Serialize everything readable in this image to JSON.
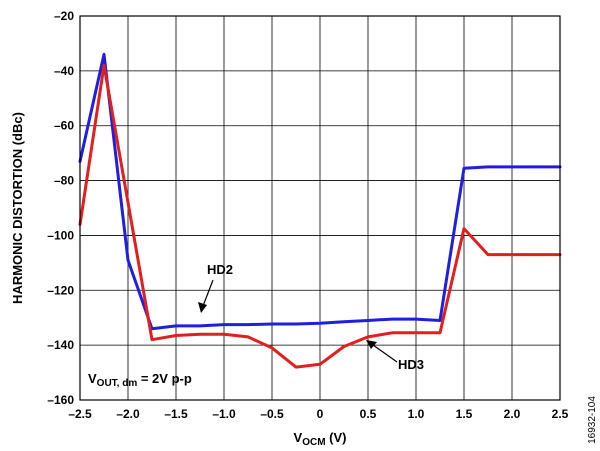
{
  "chart_data": {
    "type": "line",
    "xlabel_main": "V",
    "xlabel_sub": "OCM",
    "xlabel_unit": " (V)",
    "ylabel": "HARMONIC DISTORTION (dBc)",
    "xlim": [
      -2.5,
      2.5
    ],
    "ylim": [
      -160,
      -20
    ],
    "grid": true,
    "x_ticks": [
      -2.5,
      -2.0,
      -1.5,
      -1.0,
      -0.5,
      0,
      0.5,
      1.0,
      1.5,
      2.0,
      2.5
    ],
    "x_tick_labels": [
      "–2.5",
      "–2.0",
      "–1.5",
      "–1.0",
      "–0.5",
      "0",
      "0.5",
      "1.0",
      "1.5",
      "2.0",
      "2.5"
    ],
    "y_ticks": [
      -20,
      -40,
      -60,
      -80,
      -100,
      -120,
      -140,
      -160
    ],
    "y_tick_labels": [
      "–20",
      "–40",
      "–60",
      "–80",
      "–100",
      "–120",
      "–140",
      "–160"
    ],
    "series": [
      {
        "name": "HD2",
        "color": "#1f1fe0",
        "x": [
          -2.5,
          -2.25,
          -2.0,
          -1.75,
          -1.5,
          -1.25,
          -1.0,
          -0.75,
          -0.5,
          -0.25,
          0,
          0.25,
          0.5,
          0.75,
          1.0,
          1.25,
          1.5,
          1.75,
          2.0,
          2.25,
          2.5
        ],
        "y": [
          -73,
          -34,
          -109,
          -134,
          -133,
          -133,
          -132.5,
          -132.5,
          -132.3,
          -132.3,
          -132,
          -131.5,
          -131,
          -130.5,
          -130.5,
          -131,
          -75.5,
          -75,
          -75,
          -75,
          -75
        ]
      },
      {
        "name": "HD3",
        "color": "#e01f1f",
        "x": [
          -2.5,
          -2.25,
          -2.0,
          -1.75,
          -1.5,
          -1.25,
          -1.0,
          -0.75,
          -0.5,
          -0.25,
          0,
          0.25,
          0.5,
          0.75,
          1.0,
          1.25,
          1.5,
          1.75,
          2.0,
          2.25,
          2.5
        ],
        "y": [
          -96,
          -38,
          -88,
          -138,
          -136.5,
          -136,
          -136,
          -137,
          -141,
          -148,
          -147,
          -140.5,
          -137,
          -135.5,
          -135.5,
          -135.5,
          -97.5,
          -107,
          -107,
          -107,
          -107
        ]
      }
    ],
    "annotations": [
      {
        "text": "HD2"
      },
      {
        "text": "HD3"
      }
    ],
    "condition": {
      "main": "V",
      "sub": "OUT, dm",
      "rest": " = 2V p-p"
    }
  },
  "figure_id": "16932-104"
}
